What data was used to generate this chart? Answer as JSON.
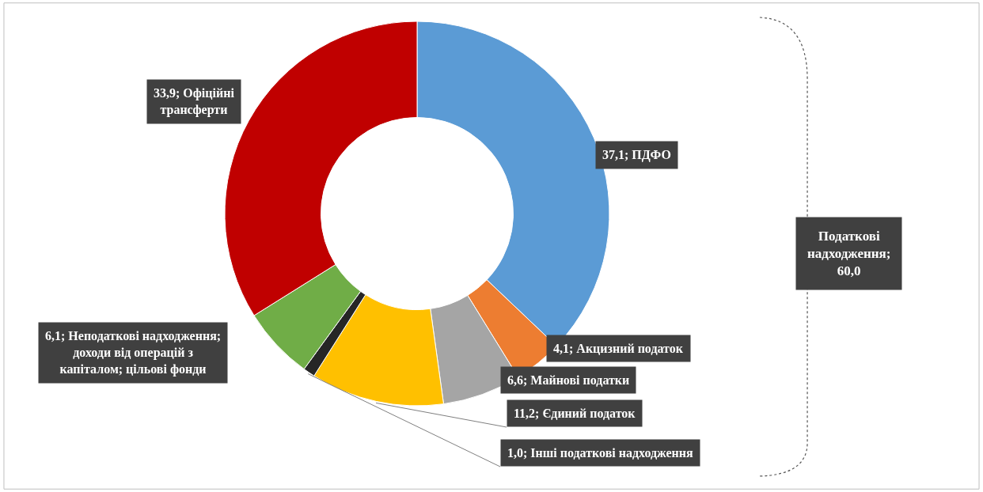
{
  "chart_data": {
    "type": "donut",
    "categories": [
      "ПДФО",
      "Акцизний податок",
      "Майнові податки",
      "Єдиний податок",
      "Інші податкові надходження",
      "Неподаткові надходження; доходи від операцій з капіталом; цільові фонди",
      "Офіційні трансферти"
    ],
    "values": [
      37.1,
      4.1,
      6.6,
      11.2,
      1.0,
      6.1,
      33.9
    ],
    "colors": [
      "#5b9bd5",
      "#ed7d31",
      "#a5a5a5",
      "#ffc000",
      "#262626",
      "#70ad47",
      "#c00000"
    ],
    "value_labels": [
      "37,1",
      "4,1",
      "6,6",
      "11,2",
      "1,0",
      "6,1",
      "33,9"
    ],
    "legend": false,
    "annotations": [
      "Податкові надходження; 60,0"
    ]
  }
}
